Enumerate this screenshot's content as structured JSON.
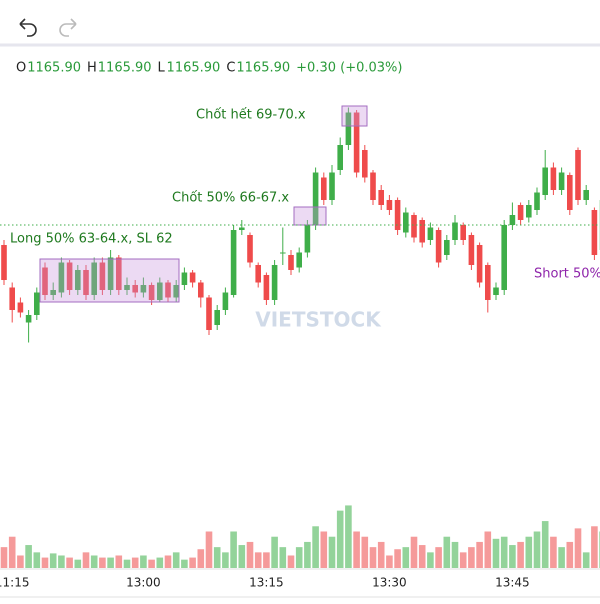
{
  "header": {
    "ohlc": [
      {
        "label": "O",
        "value": "1165.90"
      },
      {
        "label": "H",
        "value": "1165.90"
      },
      {
        "label": "L",
        "value": "1165.90"
      },
      {
        "label": "C",
        "value": "1165.90"
      }
    ],
    "change": "+0.30 (+0.03%)"
  },
  "chart_data": {
    "type": "candlestick",
    "watermark": "VIETSTOCK",
    "categories": [
      null,
      "11:15",
      null,
      null,
      null,
      null,
      null,
      null,
      null,
      null,
      null,
      null,
      null,
      null,
      null,
      null,
      null,
      "13:00",
      null,
      null,
      null,
      null,
      null,
      null,
      null,
      null,
      null,
      null,
      null,
      null,
      null,
      null,
      "13:15",
      null,
      null,
      null,
      null,
      null,
      null,
      null,
      null,
      null,
      null,
      null,
      null,
      null,
      null,
      "13:30",
      null,
      null,
      null,
      null,
      null,
      null,
      null,
      null,
      null,
      null,
      null,
      null,
      null,
      null,
      "13:45",
      null,
      null,
      null,
      null,
      null,
      null,
      null,
      null,
      null,
      null,
      null
    ],
    "open": [
      1165.1,
      1163.4,
      1162.8,
      1162.0,
      1162.3,
      1164.2,
      1163.1,
      1163.2,
      1164.4,
      1163.3,
      1164.1,
      1163.1,
      1164.4,
      1163.3,
      1164.6,
      1163.3,
      1163.5,
      1163.2,
      1163.5,
      1162.9,
      1163.6,
      1163.0,
      1163.5,
      1164.0,
      1163.6,
      1163.0,
      1161.9,
      1162.5,
      1163.1,
      1165.7,
      1165.5,
      1164.3,
      1163.9,
      1162.9,
      1164.8,
      1164.7,
      1164.2,
      1164.8,
      1165.9,
      1167.8,
      1166.9,
      1168.1,
      1169.1,
      1170.4,
      1168.9,
      1168.0,
      1167.3,
      1166.9,
      1166.9,
      1165.6,
      1166.3,
      1166.1,
      1165.3,
      1165.7,
      1164.7,
      1165.3,
      1165.9,
      1165.5,
      1165.1,
      1164.3,
      1163.1,
      1163.3,
      1165.9,
      1166.7,
      1166.2,
      1166.5,
      1167.1,
      1168.2,
      1167.3,
      1167.9,
      1168.9,
      1166.9,
      1166.5,
      1164.9
    ],
    "high": [
      1165.3,
      1163.6,
      1163.0,
      1162.5,
      1163.4,
      1164.4,
      1163.6,
      1164.6,
      1164.5,
      1164.3,
      1164.3,
      1164.6,
      1164.6,
      1164.9,
      1164.7,
      1163.8,
      1163.7,
      1163.8,
      1163.6,
      1163.8,
      1163.7,
      1163.7,
      1164.2,
      1164.1,
      1163.7,
      1163.1,
      1162.7,
      1163.4,
      1165.9,
      1166.1,
      1165.6,
      1164.4,
      1164.0,
      1164.5,
      1165.8,
      1164.9,
      1165.0,
      1166.1,
      1168.2,
      1168.0,
      1168.3,
      1169.4,
      1170.6,
      1170.5,
      1169.1,
      1168.1,
      1167.5,
      1167.1,
      1167.0,
      1166.6,
      1166.4,
      1166.2,
      1166.0,
      1165.8,
      1165.5,
      1166.3,
      1166.0,
      1165.6,
      1165.2,
      1164.4,
      1163.6,
      1166.1,
      1166.8,
      1166.8,
      1166.9,
      1167.4,
      1168.9,
      1168.4,
      1168.2,
      1168.0,
      1169.0,
      1167.5,
      1166.6,
      1167.1
    ],
    "low": [
      1163.5,
      1162.0,
      1162.2,
      1161.2,
      1162.1,
      1162.9,
      1162.9,
      1163.0,
      1163.1,
      1163.1,
      1162.9,
      1162.9,
      1163.1,
      1163.1,
      1163.1,
      1163.1,
      1163.0,
      1163.0,
      1162.7,
      1162.8,
      1162.8,
      1162.8,
      1163.3,
      1163.4,
      1162.6,
      1161.5,
      1161.7,
      1162.3,
      1163.0,
      1165.5,
      1164.2,
      1163.4,
      1162.7,
      1162.7,
      1164.3,
      1163.9,
      1164.0,
      1164.6,
      1165.7,
      1166.7,
      1166.7,
      1167.9,
      1168.9,
      1167.8,
      1167.6,
      1166.7,
      1166.5,
      1166.3,
      1165.5,
      1165.4,
      1165.2,
      1165.0,
      1165.1,
      1164.2,
      1164.5,
      1165.1,
      1165.1,
      1164.1,
      1163.4,
      1162.4,
      1162.9,
      1163.1,
      1165.7,
      1165.9,
      1166.0,
      1166.3,
      1166.9,
      1167.1,
      1167.1,
      1166.3,
      1166.7,
      1166.7,
      1164.5,
      1164.7
    ],
    "close": [
      1163.7,
      1162.5,
      1162.4,
      1162.3,
      1163.2,
      1163.1,
      1163.3,
      1164.4,
      1163.3,
      1164.1,
      1163.1,
      1164.4,
      1163.3,
      1164.6,
      1163.3,
      1163.5,
      1163.2,
      1163.5,
      1162.9,
      1163.6,
      1163.0,
      1163.5,
      1164.0,
      1163.6,
      1163.0,
      1161.7,
      1162.5,
      1163.2,
      1165.7,
      1165.8,
      1164.4,
      1163.6,
      1162.9,
      1164.3,
      1164.8,
      1164.1,
      1164.8,
      1165.9,
      1168.0,
      1166.9,
      1168.0,
      1169.1,
      1170.4,
      1168.0,
      1167.8,
      1166.9,
      1166.7,
      1166.5,
      1165.7,
      1166.4,
      1165.4,
      1165.2,
      1165.8,
      1164.4,
      1165.3,
      1166.0,
      1165.3,
      1164.3,
      1163.6,
      1162.9,
      1163.4,
      1165.9,
      1166.3,
      1166.1,
      1166.7,
      1167.2,
      1168.2,
      1167.3,
      1168.0,
      1166.5,
      1166.9,
      1167.3,
      1164.7,
      1166.9
    ],
    "volume": [
      20,
      30,
      12,
      22,
      15,
      10,
      14,
      12,
      10,
      8,
      15,
      12,
      10,
      10,
      12,
      8,
      10,
      12,
      8,
      10,
      12,
      15,
      8,
      10,
      18,
      35,
      20,
      15,
      35,
      22,
      25,
      15,
      15,
      30,
      20,
      12,
      20,
      25,
      40,
      35,
      30,
      55,
      60,
      35,
      30,
      20,
      25,
      12,
      18,
      20,
      30,
      22,
      15,
      20,
      30,
      25,
      15,
      20,
      25,
      35,
      28,
      30,
      22,
      25,
      30,
      35,
      45,
      30,
      20,
      25,
      38,
      15,
      40,
      35
    ],
    "ylim": [
      1155.7,
      1171.7
    ],
    "volume_lim": [
      0,
      70
    ],
    "up_color": "#3fae49",
    "down_color": "#ef4b4b",
    "volume_up_color": "#93d39a",
    "volume_down_color": "#f59a9a",
    "annotations": [
      {
        "text": "Long 50% 63-64.x, SL 62",
        "color": "#1f7a1f"
      },
      {
        "text": "Chốt 50% 66-67.x",
        "color": "#1f7a1f"
      },
      {
        "text": "Chốt hết 69-70.x",
        "color": "#1f7a1f"
      },
      {
        "text": "Short 50%",
        "color": "#8e24aa"
      }
    ]
  }
}
